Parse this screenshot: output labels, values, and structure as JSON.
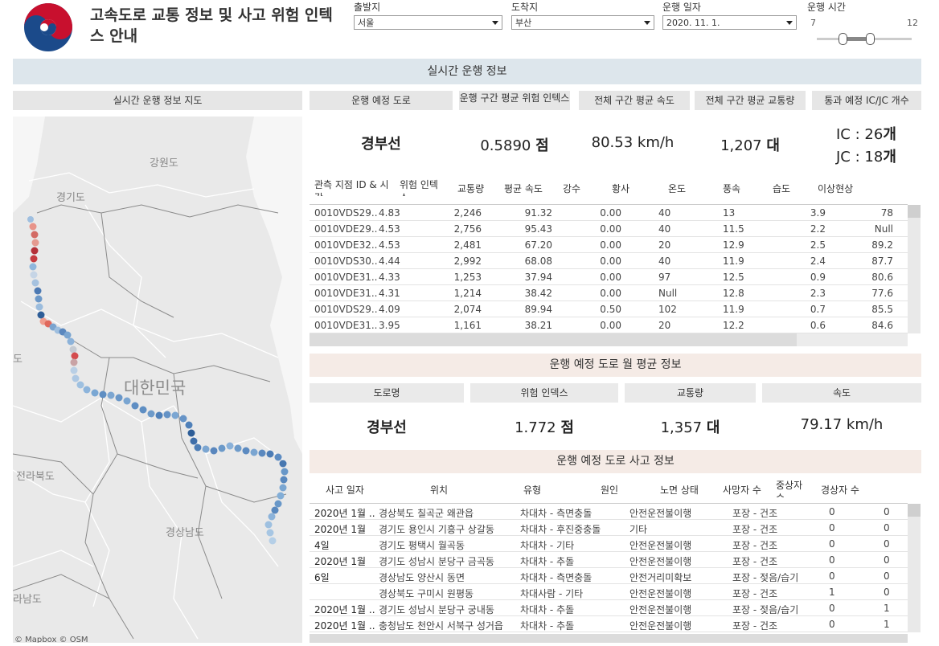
{
  "header": {
    "title_line1": "고속도로 교통 정보 및 사고 위험 인텍",
    "title_line2": "스 안내",
    "filters": {
      "departure_label": "출발지",
      "departure_value": "서울",
      "arrival_label": "도착지",
      "arrival_value": "부산",
      "date_label": "운행 일자",
      "date_value": "2020. 11. 1.",
      "time_label": "운행 시간",
      "time_min": "7",
      "time_max": "12"
    }
  },
  "realtime": {
    "band_title": "실시간 운행 정보",
    "map_title": "실시간 운행 정보 지도",
    "kpi_headers": [
      "운행 예정 도로",
      "운행 구간 평균 위험 인텍스",
      "전체 구간 평균 속도",
      "전체 구간 평균 교통량",
      "통과 예정 IC/JC 개수"
    ],
    "road_name": "경부선",
    "risk_value": "0.5890",
    "risk_unit": "점",
    "speed_value": "80.53 km/h",
    "traffic_value": "1,207",
    "traffic_unit": "대",
    "ic_label": "IC :",
    "ic_value": "26",
    "jc_label": "JC :",
    "jc_value": "18",
    "count_unit": "개"
  },
  "map": {
    "labels": {
      "gangwon": "강원도",
      "gyeonggi": "경기도",
      "do": "도",
      "korea": "대한민국",
      "jeonbuk": "전라북도",
      "gyeongnam": "경상남도",
      "jeonnam": "라남도"
    },
    "attribution": "© Mapbox © OSM"
  },
  "obs_table": {
    "headers": [
      "관측 지점 ID & 시간",
      "위험 인텍스",
      "교통량",
      "평균 속도",
      "강수",
      "황사",
      "온도",
      "풍속",
      "습도",
      "이상현상"
    ],
    "rows": [
      [
        "0010VDS29..",
        "4.83",
        "2,246",
        "91.32",
        "0.00",
        "40",
        "13",
        "3.9",
        "78"
      ],
      [
        "0010VDE29..",
        "4.53",
        "2,756",
        "95.43",
        "0.00",
        "40",
        "11.5",
        "2.2",
        "Null"
      ],
      [
        "0010VDE32..",
        "4.53",
        "2,481",
        "67.20",
        "0.00",
        "20",
        "12.9",
        "2.5",
        "89.2"
      ],
      [
        "0010VDS30..",
        "4.44",
        "2,992",
        "68.08",
        "0.00",
        "40",
        "11.9",
        "2.4",
        "87.7"
      ],
      [
        "0010VDE31..",
        "4.33",
        "1,253",
        "37.94",
        "0.00",
        "97",
        "12.5",
        "0.9",
        "80.6"
      ],
      [
        "0010VDE31..",
        "4.31",
        "1,214",
        "38.42",
        "0.00",
        "Null",
        "12.8",
        "2.3",
        "77.6"
      ],
      [
        "0010VDS29..",
        "4.09",
        "2,074",
        "89.94",
        "0.50",
        "102",
        "11.9",
        "0.7",
        "85.5"
      ],
      [
        "0010VDE31..",
        "3.95",
        "1,161",
        "38.21",
        "0.00",
        "20",
        "12.2",
        "0.6",
        "84.6"
      ]
    ]
  },
  "monthly": {
    "band_title": "운행 예정 도로 월 평균 정보",
    "headers": [
      "도로명",
      "위험 인덱스",
      "교통량",
      "속도"
    ],
    "road_name": "경부선",
    "risk_value": "1.772",
    "risk_unit": "점",
    "traffic_value": "1,357",
    "traffic_unit": "대",
    "speed_value": "79.17 km/h"
  },
  "accidents": {
    "band_title": "운행 예정 도로 사고 정보",
    "headers": [
      "사고 일자",
      "위치",
      "유형",
      "원인",
      "노면 상태",
      "사망자 수",
      "중상자 수",
      "경상자 수"
    ],
    "rows": [
      {
        "date": "2020년 1월 ..",
        "loc": "경상북도 칠곡군 왜관읍",
        "type": "차대차 - 측면충돌",
        "cause": "안전운전불이행",
        "road": "포장 - 건조",
        "dead": "0",
        "serious": "0"
      },
      {
        "date": "2020년 1월",
        "loc": "경기도 용인시 기흥구 상갈동",
        "type": "차대차 - 후진중충돌",
        "cause": "기타",
        "road": "포장 - 건조",
        "dead": "0",
        "serious": "0"
      },
      {
        "date": "4일",
        "loc": "경기도 평택시 월곡동",
        "type": "차대차 - 기타",
        "cause": "안전운전불이행",
        "road": "포장 - 건조",
        "dead": "0",
        "serious": "0"
      },
      {
        "date": "2020년 1월",
        "loc": "경기도 성남시 분당구 금곡동",
        "type": "차대차 - 추돌",
        "cause": "안전운전불이행",
        "road": "포장 - 건조",
        "dead": "0",
        "serious": "0"
      },
      {
        "date": "6일",
        "loc": "경상남도 양산시 동면",
        "type": "차대차 - 측면충돌",
        "cause": "안전거리미확보",
        "road": "포장 - 젖음/습기",
        "dead": "0",
        "serious": "0"
      },
      {
        "date": "",
        "loc": "경상북도 구미시 원평동",
        "type": "차대사람 - 기타",
        "cause": "안전운전불이행",
        "road": "포장 - 건조",
        "dead": "1",
        "serious": "0"
      },
      {
        "date": "2020년 1월 ..",
        "loc": "경기도 성남시 분당구 궁내동",
        "type": "차대차 - 추돌",
        "cause": "안전운전불이행",
        "road": "포장 - 젖음/습기",
        "dead": "0",
        "serious": "1"
      },
      {
        "date": "2020년 1월 ..",
        "loc": "충청남도 천안시 서북구 성거읍",
        "type": "차대차 - 추돌",
        "cause": "안전운전불이행",
        "road": "포장 - 건조",
        "dead": "0",
        "serious": "1"
      }
    ]
  },
  "colors": {
    "band_blue": "#dde6ec",
    "band_pink": "#f5ebe6",
    "route_low": "#6a9ccc",
    "route_high": "#c8383a"
  }
}
